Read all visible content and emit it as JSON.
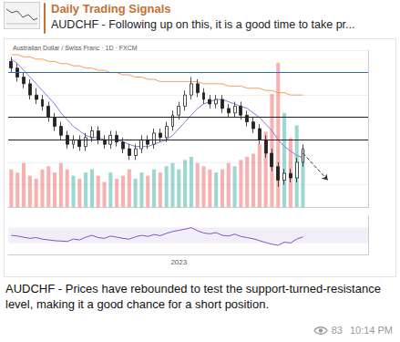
{
  "header": {
    "channel": "Daily Trading Signals",
    "reply": "AUDCHF - Following up on this, it is a good time to take pr..."
  },
  "chart_data": [
    {
      "type": "candlestick",
      "title": "Australian Dollar / Swiss Franc · 1D · FXCM",
      "categories": [
        null,
        null,
        null,
        null,
        null,
        null,
        null,
        null,
        null,
        null,
        null,
        null,
        null,
        null,
        null,
        null,
        null,
        null,
        null,
        null,
        null,
        null,
        null,
        null,
        null,
        null,
        null,
        "2023",
        null,
        null,
        null,
        null,
        null,
        null,
        null,
        null,
        null,
        null,
        null,
        null,
        null,
        null,
        null,
        null,
        null,
        null,
        null,
        null,
        null,
        null,
        null,
        null,
        null,
        null,
        null,
        null,
        null,
        null
      ],
      "ylim": [
        0.6,
        0.67
      ],
      "yticks": [
        0.6,
        0.61,
        0.62,
        0.63,
        0.64,
        0.65,
        0.66,
        0.67
      ],
      "y2lim": [
        0,
        250
      ],
      "y2ticks": [
        0,
        50,
        100,
        150,
        200,
        250
      ],
      "grid": true,
      "tick_labels": false,
      "series": [
        {
          "type": "candlestick",
          "open": [
            0.665,
            0.662,
            0.658,
            0.655,
            0.65,
            0.648,
            0.645,
            0.64,
            0.636,
            0.632,
            0.628,
            0.63,
            0.627,
            0.631,
            0.634,
            0.63,
            0.628,
            0.632,
            0.629,
            0.626,
            0.623,
            0.626,
            0.63,
            0.628,
            0.633,
            0.631,
            0.636,
            0.641,
            0.645,
            0.65,
            0.655,
            0.651,
            0.648,
            0.646,
            0.648,
            0.644,
            0.642,
            0.645,
            0.641,
            0.638,
            0.635,
            0.63,
            0.624,
            0.618,
            0.612,
            0.615,
            0.613,
            0.62,
            null,
            null,
            null,
            null,
            null,
            null,
            null,
            null,
            null,
            null
          ],
          "close": [
            0.662,
            0.658,
            0.655,
            0.65,
            0.648,
            0.645,
            0.64,
            0.636,
            0.632,
            0.628,
            0.63,
            0.627,
            0.631,
            0.634,
            0.63,
            0.628,
            0.632,
            0.629,
            0.626,
            0.623,
            0.626,
            0.63,
            0.628,
            0.633,
            0.631,
            0.636,
            0.641,
            0.645,
            0.65,
            0.655,
            0.651,
            0.648,
            0.646,
            0.648,
            0.644,
            0.642,
            0.645,
            0.641,
            0.638,
            0.635,
            0.63,
            0.624,
            0.618,
            0.612,
            0.615,
            0.613,
            0.62,
            0.626,
            null,
            null,
            null,
            null,
            null,
            null,
            null,
            null,
            null,
            null
          ],
          "low": [
            0.66,
            0.656,
            0.653,
            0.648,
            0.646,
            0.643,
            0.638,
            0.634,
            0.63,
            0.626,
            0.626,
            0.625,
            0.625,
            0.629,
            0.628,
            0.626,
            0.626,
            0.627,
            0.624,
            0.621,
            0.621,
            0.624,
            0.626,
            0.626,
            0.629,
            0.629,
            0.634,
            0.639,
            0.643,
            0.648,
            0.649,
            0.646,
            0.644,
            0.644,
            0.642,
            0.64,
            0.64,
            0.639,
            0.636,
            0.633,
            0.628,
            0.622,
            0.616,
            0.609,
            0.61,
            0.611,
            0.611,
            0.618,
            null,
            null,
            null,
            null,
            null,
            null,
            null,
            null,
            null,
            null
          ],
          "high": [
            0.667,
            0.664,
            0.66,
            0.657,
            0.653,
            0.65,
            0.647,
            0.642,
            0.638,
            0.634,
            0.632,
            0.632,
            0.633,
            0.636,
            0.636,
            0.632,
            0.634,
            0.634,
            0.631,
            0.628,
            0.628,
            0.632,
            0.632,
            0.635,
            0.635,
            0.638,
            0.643,
            0.647,
            0.652,
            0.658,
            0.657,
            0.653,
            0.65,
            0.65,
            0.65,
            0.646,
            0.647,
            0.647,
            0.643,
            0.64,
            0.637,
            0.632,
            0.626,
            0.62,
            0.617,
            0.617,
            0.622,
            0.628,
            null,
            null,
            null,
            null,
            null,
            null,
            null,
            null,
            null,
            null
          ],
          "levels": [
            {
              "value": 0.657,
              "color": "#2962ff"
            },
            {
              "value": 0.641,
              "color": "#222222"
            },
            {
              "value": 0.626,
              "color": "#222222"
            }
          ],
          "projection": {
            "x": [
              47,
              51
            ],
            "y": [
              0.624,
              0.612
            ]
          }
        },
        {
          "type": "bar",
          "axis": "y2",
          "values": [
            60,
            55,
            70,
            50,
            45,
            60,
            65,
            55,
            70,
            60,
            50,
            45,
            55,
            60,
            50,
            40,
            55,
            45,
            50,
            60,
            45,
            55,
            50,
            60,
            55,
            65,
            70,
            60,
            75,
            80,
            70,
            65,
            60,
            55,
            60,
            70,
            65,
            75,
            80,
            85,
            100,
            120,
            180,
            230,
            150,
            110,
            130,
            90,
            null,
            null,
            null,
            null,
            null,
            null,
            null,
            null,
            null,
            null
          ]
        },
        {
          "type": "line",
          "color": "#f0a060",
          "values": [
            0.668,
            0.668,
            0.667,
            0.667,
            0.666,
            0.666,
            0.665,
            0.665,
            0.664,
            0.664,
            0.663,
            0.663,
            0.662,
            0.662,
            0.661,
            0.661,
            0.66,
            0.66,
            0.659,
            0.659,
            0.658,
            0.658,
            0.657,
            0.657,
            0.656,
            0.656,
            0.656,
            0.656,
            0.656,
            0.656,
            0.656,
            0.655,
            0.655,
            0.655,
            0.655,
            0.654,
            0.654,
            0.654,
            0.653,
            0.653,
            0.653,
            0.652,
            0.652,
            0.651,
            0.651,
            0.65,
            0.65,
            0.65,
            null,
            null,
            null,
            null,
            null,
            null,
            null,
            null,
            null,
            null
          ]
        },
        {
          "type": "line",
          "color": "#9c6fd6",
          "values": [
            0.666,
            0.664,
            0.661,
            0.658,
            0.655,
            0.652,
            0.649,
            0.646,
            0.642,
            0.639,
            0.636,
            0.634,
            0.632,
            0.631,
            0.631,
            0.63,
            0.63,
            0.63,
            0.629,
            0.628,
            0.627,
            0.627,
            0.627,
            0.628,
            0.629,
            0.63,
            0.632,
            0.635,
            0.638,
            0.641,
            0.644,
            0.646,
            0.647,
            0.648,
            0.648,
            0.647,
            0.646,
            0.645,
            0.644,
            0.642,
            0.64,
            0.637,
            0.634,
            0.63,
            0.627,
            0.625,
            0.623,
            0.622,
            null,
            null,
            null,
            null,
            null,
            null,
            null,
            null,
            null,
            null
          ]
        }
      ]
    },
    {
      "type": "line",
      "categories": [
        null,
        null,
        null,
        null,
        null,
        null,
        null,
        null,
        null,
        null,
        null,
        null,
        null,
        null,
        null,
        null,
        null,
        null,
        null,
        null,
        null,
        null,
        null,
        null,
        null,
        null,
        null,
        "2023",
        null,
        null,
        null,
        null,
        null,
        null,
        null,
        null,
        null,
        null,
        null,
        null,
        null,
        null,
        null,
        null,
        null,
        null,
        null,
        null,
        null,
        null,
        null,
        null,
        null,
        null,
        null,
        null,
        null,
        null
      ],
      "ylim": [
        0,
        100
      ],
      "yticks": [
        30,
        70
      ],
      "band": [
        30,
        70
      ],
      "grid": false,
      "tick_labels": "x",
      "color": "#7e57c2",
      "values": [
        50,
        48,
        45,
        42,
        44,
        40,
        38,
        36,
        35,
        34,
        40,
        38,
        45,
        50,
        44,
        42,
        48,
        45,
        42,
        40,
        46,
        50,
        47,
        52,
        49,
        55,
        60,
        63,
        66,
        70,
        62,
        56,
        54,
        57,
        50,
        48,
        53,
        47,
        44,
        41,
        36,
        31,
        27,
        24,
        32,
        30,
        40,
        46,
        null,
        null,
        null,
        null,
        null,
        null,
        null,
        null,
        null,
        null
      ]
    }
  ],
  "caption": "AUDCHF - Prices have rebounded to test the support-turned-resistance level, making it a good chance for a short position.",
  "footer": {
    "views": 83,
    "time": "10:14 PM"
  }
}
